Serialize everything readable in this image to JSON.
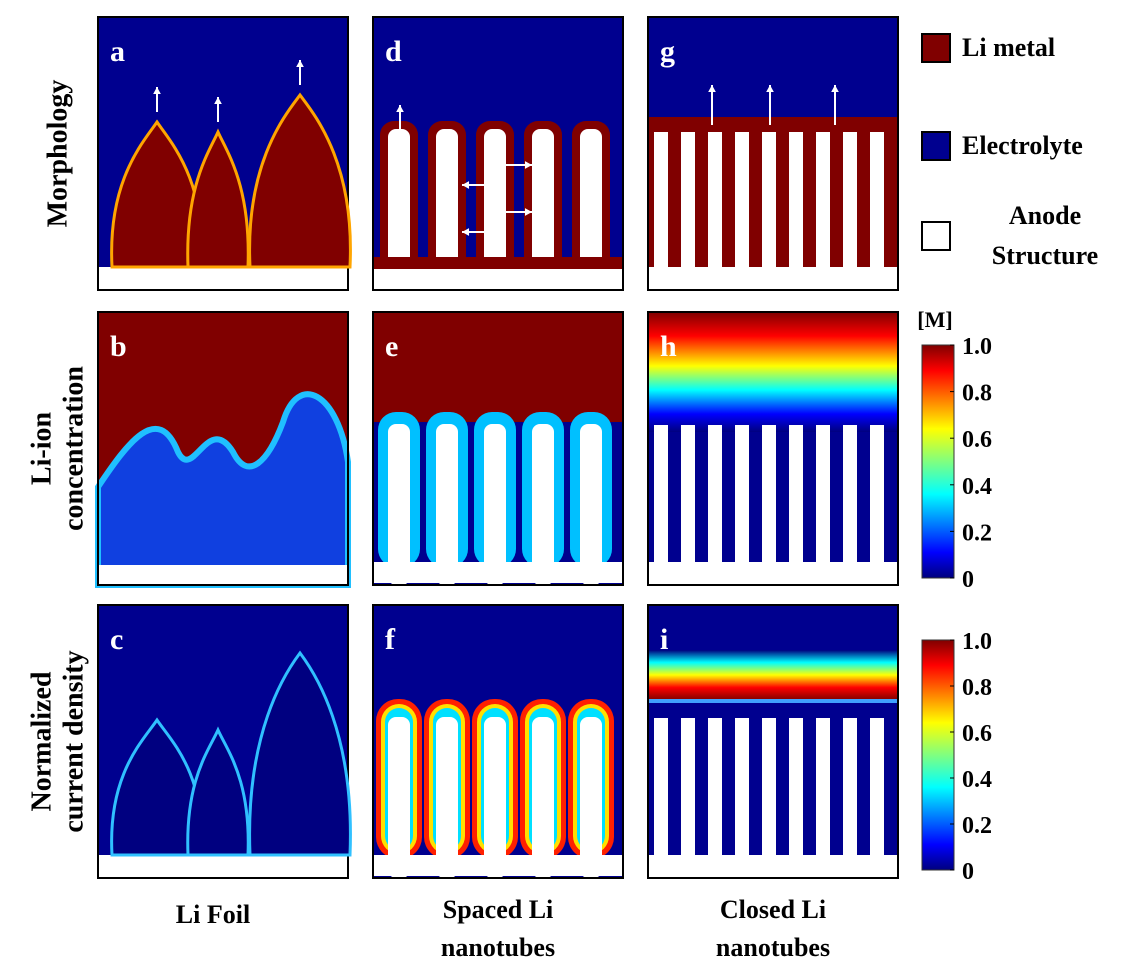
{
  "panels": [
    "a",
    "b",
    "c",
    "d",
    "e",
    "f",
    "g",
    "h",
    "i"
  ],
  "row_labels": [
    [
      "Morphology"
    ],
    [
      "Li-ion",
      "concentration"
    ],
    [
      "Normalized",
      "current density"
    ]
  ],
  "column_labels": [
    [
      "Li Foil"
    ],
    [
      "Spaced Li",
      "nanotubes"
    ],
    [
      "Closed Li",
      "nanotubes"
    ]
  ],
  "legend": [
    {
      "lines": [
        "Li metal"
      ]
    },
    {
      "lines": [
        "Electrolyte"
      ]
    },
    {
      "lines": [
        "Anode",
        "Structure"
      ]
    }
  ],
  "colorbars": [
    {
      "unit": "[M]",
      "ticks": [
        0,
        0.2,
        0.4,
        0.6,
        0.8,
        {
          "value": 1,
          "label": "1.0"
        }
      ]
    },
    {
      "ticks": [
        0,
        0.2,
        0.4,
        0.6,
        0.8,
        {
          "value": 1,
          "label": "1.0"
        }
      ]
    }
  ]
}
